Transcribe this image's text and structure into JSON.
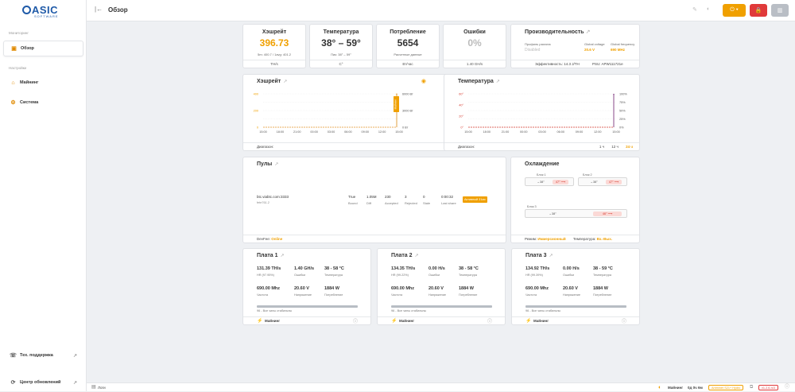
{
  "brand": {
    "logo_main": "ASIC",
    "logo_sub": "SOFTWARE"
  },
  "sidebar": {
    "section_monitoring": "Мониторинг",
    "section_settings": "Настройки",
    "items": [
      {
        "label": "Обзор",
        "icon": "overview-icon"
      },
      {
        "label": "Майнинг",
        "icon": "mining-icon"
      },
      {
        "label": "Система",
        "icon": "system-icon"
      }
    ],
    "support": "Тех. поддержка",
    "updates": "Центр обновлений"
  },
  "header": {
    "title": "Обзор"
  },
  "stats": {
    "hashrate": {
      "title": "Хэшрейт",
      "value": "396.73",
      "sub": "5m: 400.7 / 1avg: 401.2",
      "unit": "TH/s"
    },
    "temperature": {
      "title": "Температура",
      "value": "38° – 59°",
      "sub": "Пик: 38° – 59°",
      "unit": "C°"
    },
    "consumption": {
      "title": "Потребление",
      "value": "5654",
      "sub": "Расчетные данные",
      "unit": "Вт/час"
    },
    "errors": {
      "title": "Ошибки",
      "value": "0%",
      "unit": "1.40 GH/s"
    },
    "performance": {
      "title": "Производительность",
      "profile_label": "Профиль разгона",
      "profile_value": "Disabled",
      "voltage_label": "Global voltage",
      "voltage_value": "20.6 V",
      "freq_label": "Global frequency",
      "freq_value": "690 MHz",
      "efficiency": "Эффективность: 14.3 J/TH",
      "psu": "PSU: APW111721e"
    }
  },
  "hash_chart": {
    "title": "Хэшрейт",
    "range_label": "Диапазон:",
    "ranges": [
      "1 ч",
      "12 ч",
      "24 ч"
    ],
    "selected": "24 ч",
    "y_left": [
      "400",
      "200",
      "0"
    ],
    "y_right": [
      "6000 Вт",
      "3000 Вт",
      "0 Вт"
    ],
    "badge": "Майнинг",
    "x_ticks": [
      "15:00",
      "18:00",
      "21:00",
      "00:00",
      "03:00",
      "06:00",
      "09:00",
      "12:00",
      "15:00"
    ]
  },
  "temp_chart": {
    "title": "Температура",
    "range_label": "Диапазон:",
    "ranges": [
      "1 ч",
      "12 ч",
      "24 ч"
    ],
    "selected": "24 ч",
    "y_left": [
      "60°",
      "40°",
      "20°",
      "0°"
    ],
    "y_right": [
      "100%",
      "75%",
      "50%",
      "25%",
      "0%"
    ],
    "x_ticks": [
      "15:00",
      "18:00",
      "21:00",
      "00:00",
      "03:00",
      "06:00",
      "09:00",
      "12:00",
      "15:00"
    ]
  },
  "chart_data": [
    {
      "type": "line",
      "title": "Хэшрейт",
      "x": [
        "15:00",
        "18:00",
        "21:00",
        "00:00",
        "03:00",
        "06:00",
        "09:00",
        "12:00",
        "15:00"
      ],
      "ylim": [
        0,
        400
      ],
      "series": [
        {
          "values": [
            0,
            0,
            0,
            0,
            0,
            0,
            0,
            0,
            397
          ]
        }
      ]
    },
    {
      "type": "line",
      "title": "Температура",
      "x": [
        "15:00",
        "18:00",
        "21:00",
        "00:00",
        "03:00",
        "06:00",
        "09:00",
        "12:00",
        "15:00"
      ],
      "ylim": [
        0,
        60
      ],
      "series": [
        {
          "values": [
            0,
            0,
            0,
            0,
            0,
            0,
            0,
            0,
            59
          ]
        }
      ]
    }
  ],
  "pools": {
    "title": "Пулы",
    "url": "btc.viabtc.com:3333",
    "worker": "fete761.2",
    "status": "True",
    "status_lbl": "Bound",
    "diff": "1.05M",
    "diff_lbl": "Diff",
    "accepted": "230",
    "accepted_lbl": "Accepted",
    "rejected": "3",
    "rejected_lbl": "Rejected",
    "stale": "0",
    "stale_lbl": "Stale",
    "last_share": "0:00:32",
    "last_share_lbl": "Last share",
    "badge": "Активный 31мс",
    "devfee_label": "DevFee:",
    "devfee_value": "Online"
  },
  "cooling": {
    "title": "Охлаждение",
    "blocks": [
      {
        "name": "Блок 1",
        "in": "38°",
        "out": "47°"
      },
      {
        "name": "Блок 2",
        "in": "38°",
        "out": "47°"
      },
      {
        "name": "Блок 3",
        "in": "38°",
        "out": "46°"
      }
    ],
    "mode_label": "Режим:",
    "mode_value": "Иммерсионный",
    "temp_label": "Температура:",
    "temp_value": "Вх.-Вых."
  },
  "boards": [
    {
      "title": "Плата 1",
      "hash": "131.39 TH/s",
      "hash_lbl": "HR (97.95%)",
      "err": "1.40 GH/s",
      "err_lbl": "Ошибки",
      "temp": "38 - 58 °C",
      "temp_lbl": "Температура",
      "freq": "690.00 Mhz",
      "freq_lbl": "Частота",
      "volt": "20.60 V",
      "volt_lbl": "Напряжение",
      "power": "1884 W",
      "power_lbl": "Потребление",
      "chips": "96 - Все чипы стабильны",
      "state": "Майнинг"
    },
    {
      "title": "Плата 2",
      "hash": "134.35 TH/s",
      "hash_lbl": "HR (99.22%)",
      "err": "0.00 H/s",
      "err_lbl": "Ошибки",
      "temp": "38 - 58 °C",
      "temp_lbl": "Температура",
      "freq": "690.00 Mhz",
      "freq_lbl": "Частота",
      "volt": "20.60 V",
      "volt_lbl": "Напряжение",
      "power": "1884 W",
      "power_lbl": "Потребление",
      "chips": "96 - Все чипы стабильны",
      "state": "Майнинг"
    },
    {
      "title": "Плата 3",
      "hash": "134.92 TH/s",
      "hash_lbl": "HR (99.39%)",
      "err": "0.00 H/s",
      "err_lbl": "Ошибки",
      "temp": "38 - 59 °C",
      "temp_lbl": "Температура",
      "freq": "690.00 Mhz",
      "freq_lbl": "Частота",
      "volt": "20.60 V",
      "volt_lbl": "Напряжение",
      "power": "1884 W",
      "power_lbl": "Потребление",
      "chips": "96 - Все чипы стабильны",
      "state": "Майнинг"
    }
  ],
  "footer": {
    "logs": "Логи",
    "mining_label": "Майнинг",
    "uptime": "0д 0ч 6м",
    "firmware": "Antminer S21+ Hydro",
    "version": "v1.2.6-rc3"
  },
  "colors": {
    "accent": "#f0a000",
    "danger": "#e03a3a",
    "brand": "#1f5aa8"
  }
}
